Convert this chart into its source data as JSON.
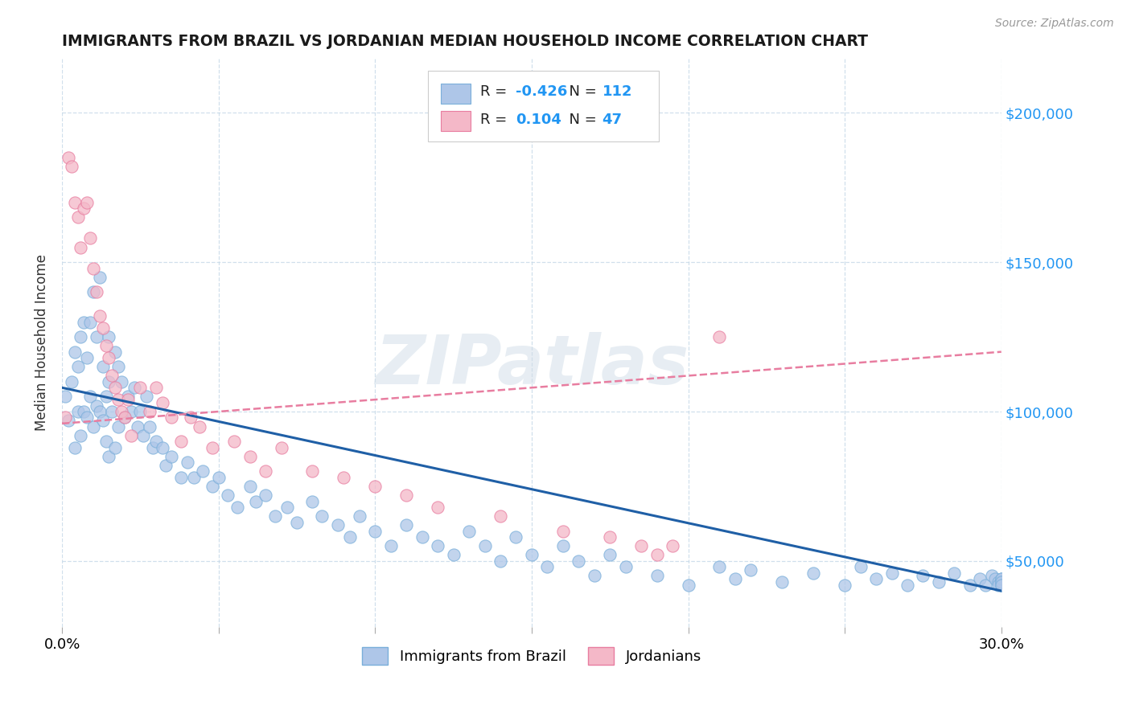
{
  "title": "IMMIGRANTS FROM BRAZIL VS JORDANIAN MEDIAN HOUSEHOLD INCOME CORRELATION CHART",
  "source_text": "Source: ZipAtlas.com",
  "ylabel": "Median Household Income",
  "xmin": 0.0,
  "xmax": 0.3,
  "ymin": 28000,
  "ymax": 218000,
  "yticks": [
    50000,
    100000,
    150000,
    200000
  ],
  "ytick_labels": [
    "$50,000",
    "$100,000",
    "$150,000",
    "$200,000"
  ],
  "xticks": [
    0.0,
    0.05,
    0.1,
    0.15,
    0.2,
    0.25,
    0.3
  ],
  "brazil_color": "#aec6e8",
  "jordan_color": "#f4b8c8",
  "brazil_edge_color": "#7aafda",
  "jordan_edge_color": "#e87da0",
  "brazil_R": "-0.426",
  "brazil_N": "112",
  "jordan_R": "0.104",
  "jordan_N": "47",
  "brazil_line_color": "#1f5fa6",
  "jordan_line_color": "#e87da0",
  "brazil_line_x": [
    0.0,
    0.3
  ],
  "brazil_line_y": [
    108000,
    40000
  ],
  "jordan_line_x": [
    0.0,
    0.3
  ],
  "jordan_line_y": [
    96000,
    120000
  ],
  "watermark_text": "ZIPatlas",
  "brazil_scatter_x": [
    0.001,
    0.002,
    0.003,
    0.004,
    0.004,
    0.005,
    0.005,
    0.006,
    0.006,
    0.007,
    0.007,
    0.008,
    0.008,
    0.009,
    0.009,
    0.01,
    0.01,
    0.011,
    0.011,
    0.012,
    0.012,
    0.013,
    0.013,
    0.014,
    0.014,
    0.015,
    0.015,
    0.015,
    0.016,
    0.017,
    0.017,
    0.018,
    0.018,
    0.019,
    0.02,
    0.021,
    0.022,
    0.023,
    0.024,
    0.025,
    0.026,
    0.027,
    0.028,
    0.029,
    0.03,
    0.032,
    0.033,
    0.035,
    0.038,
    0.04,
    0.042,
    0.045,
    0.048,
    0.05,
    0.053,
    0.056,
    0.06,
    0.062,
    0.065,
    0.068,
    0.072,
    0.075,
    0.08,
    0.083,
    0.088,
    0.092,
    0.095,
    0.1,
    0.105,
    0.11,
    0.115,
    0.12,
    0.125,
    0.13,
    0.135,
    0.14,
    0.145,
    0.15,
    0.155,
    0.16,
    0.165,
    0.17,
    0.175,
    0.18,
    0.19,
    0.2,
    0.21,
    0.215,
    0.22,
    0.23,
    0.24,
    0.25,
    0.255,
    0.26,
    0.265,
    0.27,
    0.275,
    0.28,
    0.285,
    0.29,
    0.293,
    0.295,
    0.297,
    0.298,
    0.299,
    0.299,
    0.3,
    0.3,
    0.3,
    0.3,
    0.3,
    0.3
  ],
  "brazil_scatter_y": [
    105000,
    97000,
    110000,
    88000,
    120000,
    100000,
    115000,
    92000,
    125000,
    100000,
    130000,
    98000,
    118000,
    105000,
    130000,
    95000,
    140000,
    102000,
    125000,
    100000,
    145000,
    97000,
    115000,
    105000,
    90000,
    110000,
    125000,
    85000,
    100000,
    120000,
    88000,
    115000,
    95000,
    110000,
    98000,
    105000,
    100000,
    108000,
    95000,
    100000,
    92000,
    105000,
    95000,
    88000,
    90000,
    88000,
    82000,
    85000,
    78000,
    83000,
    78000,
    80000,
    75000,
    78000,
    72000,
    68000,
    75000,
    70000,
    72000,
    65000,
    68000,
    63000,
    70000,
    65000,
    62000,
    58000,
    65000,
    60000,
    55000,
    62000,
    58000,
    55000,
    52000,
    60000,
    55000,
    50000,
    58000,
    52000,
    48000,
    55000,
    50000,
    45000,
    52000,
    48000,
    45000,
    42000,
    48000,
    44000,
    47000,
    43000,
    46000,
    42000,
    48000,
    44000,
    46000,
    42000,
    45000,
    43000,
    46000,
    42000,
    44000,
    42000,
    45000,
    44000,
    43000,
    42000,
    44000,
    43000,
    42000,
    44000,
    43000,
    42000
  ],
  "jordan_scatter_x": [
    0.001,
    0.002,
    0.003,
    0.004,
    0.005,
    0.006,
    0.007,
    0.008,
    0.009,
    0.01,
    0.011,
    0.012,
    0.013,
    0.014,
    0.015,
    0.016,
    0.017,
    0.018,
    0.019,
    0.02,
    0.021,
    0.022,
    0.025,
    0.028,
    0.03,
    0.032,
    0.035,
    0.038,
    0.041,
    0.044,
    0.048,
    0.055,
    0.06,
    0.065,
    0.07,
    0.08,
    0.09,
    0.1,
    0.11,
    0.12,
    0.14,
    0.16,
    0.175,
    0.185,
    0.19,
    0.195,
    0.21
  ],
  "jordan_scatter_y": [
    98000,
    185000,
    182000,
    170000,
    165000,
    155000,
    168000,
    170000,
    158000,
    148000,
    140000,
    132000,
    128000,
    122000,
    118000,
    112000,
    108000,
    104000,
    100000,
    98000,
    104000,
    92000,
    108000,
    100000,
    108000,
    103000,
    98000,
    90000,
    98000,
    95000,
    88000,
    90000,
    85000,
    80000,
    88000,
    80000,
    78000,
    75000,
    72000,
    68000,
    65000,
    60000,
    58000,
    55000,
    52000,
    55000,
    125000
  ]
}
